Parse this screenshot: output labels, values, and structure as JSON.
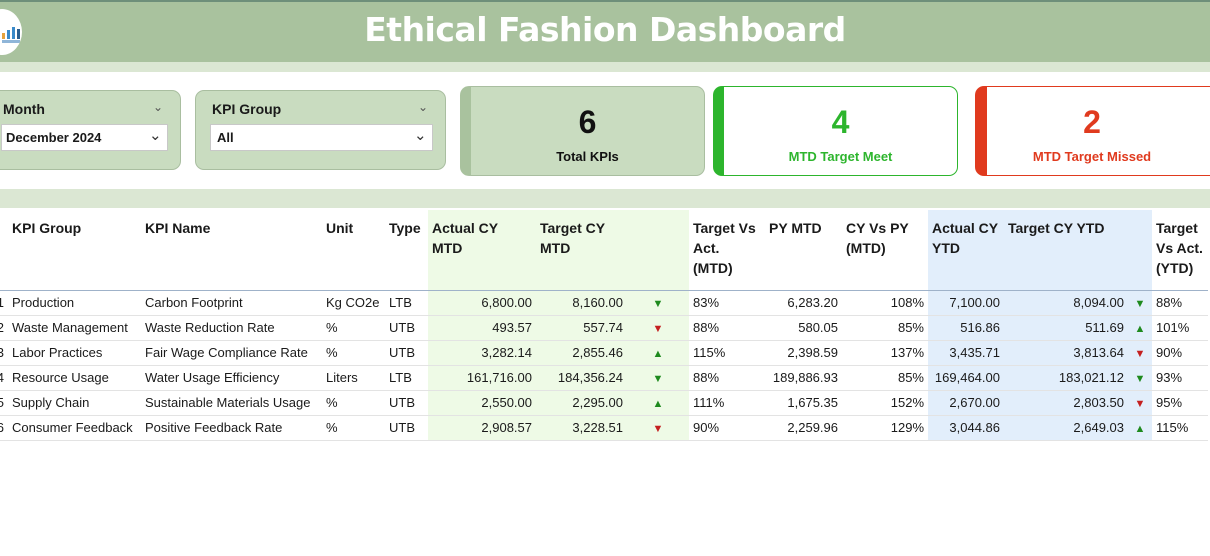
{
  "header": {
    "title": "Ethical Fashion Dashboard"
  },
  "filters": {
    "month": {
      "label": "Month",
      "value": "December 2024"
    },
    "kpi_group": {
      "label": "KPI Group",
      "value": "All"
    }
  },
  "cards": {
    "total": {
      "value": "6",
      "label": "Total KPIs"
    },
    "meet": {
      "value": "4",
      "label": "MTD Target Meet",
      "color": "#2db52d"
    },
    "missed": {
      "value": "2",
      "label": "MTD Target Missed",
      "color": "#e03a1e"
    }
  },
  "table": {
    "headers": {
      "no": "",
      "group": "KPI Group",
      "name": "KPI Name",
      "unit": "Unit",
      "type": "Type",
      "actual_mtd": "Actual CY MTD",
      "target_mtd": "Target CY MTD",
      "tva_mtd": "Target Vs Act. (MTD)",
      "py_mtd": "PY MTD",
      "cyvspy_mtd": "CY Vs PY (MTD)",
      "actual_ytd": "Actual CY YTD",
      "target_ytd": "Target CY YTD",
      "tva_ytd": "Target Vs Act. (YTD)"
    },
    "rows": [
      {
        "no": "1",
        "group": "Production",
        "name": "Carbon Footprint",
        "unit": "Kg CO2e",
        "type": "LTB",
        "actual_mtd": "6,800.00",
        "target_mtd": "8,160.00",
        "icon_mtd": "down-green",
        "tva_mtd": "83%",
        "py_mtd": "6,283.20",
        "cyvspy_mtd": "108%",
        "actual_ytd": "7,100.00",
        "target_ytd": "8,094.00",
        "icon_ytd": "down-green",
        "tva_ytd": "88%"
      },
      {
        "no": "2",
        "group": "Waste Management",
        "name": "Waste Reduction Rate",
        "unit": "%",
        "type": "UTB",
        "actual_mtd": "493.57",
        "target_mtd": "557.74",
        "icon_mtd": "down-red",
        "tva_mtd": "88%",
        "py_mtd": "580.05",
        "cyvspy_mtd": "85%",
        "actual_ytd": "516.86",
        "target_ytd": "511.69",
        "icon_ytd": "up-green",
        "tva_ytd": "101%"
      },
      {
        "no": "3",
        "group": "Labor Practices",
        "name": "Fair Wage Compliance Rate",
        "unit": "%",
        "type": "UTB",
        "actual_mtd": "3,282.14",
        "target_mtd": "2,855.46",
        "icon_mtd": "up-green",
        "tva_mtd": "115%",
        "py_mtd": "2,398.59",
        "cyvspy_mtd": "137%",
        "actual_ytd": "3,435.71",
        "target_ytd": "3,813.64",
        "icon_ytd": "down-red",
        "tva_ytd": "90%"
      },
      {
        "no": "4",
        "group": "Resource Usage",
        "name": "Water Usage Efficiency",
        "unit": "Liters",
        "type": "LTB",
        "actual_mtd": "161,716.00",
        "target_mtd": "184,356.24",
        "icon_mtd": "down-green",
        "tva_mtd": "88%",
        "py_mtd": "189,886.93",
        "cyvspy_mtd": "85%",
        "actual_ytd": "169,464.00",
        "target_ytd": "183,021.12",
        "icon_ytd": "down-green",
        "tva_ytd": "93%"
      },
      {
        "no": "5",
        "group": "Supply Chain",
        "name": "Sustainable Materials Usage",
        "unit": "%",
        "type": "UTB",
        "actual_mtd": "2,550.00",
        "target_mtd": "2,295.00",
        "icon_mtd": "up-green",
        "tva_mtd": "111%",
        "py_mtd": "1,675.35",
        "cyvspy_mtd": "152%",
        "actual_ytd": "2,670.00",
        "target_ytd": "2,803.50",
        "icon_ytd": "down-red",
        "tva_ytd": "95%"
      },
      {
        "no": "6",
        "group": "Consumer Feedback",
        "name": "Positive Feedback Rate",
        "unit": "%",
        "type": "UTB",
        "actual_mtd": "2,908.57",
        "target_mtd": "3,228.51",
        "icon_mtd": "down-red",
        "tva_mtd": "90%",
        "py_mtd": "2,259.96",
        "cyvspy_mtd": "129%",
        "actual_ytd": "3,044.86",
        "target_ytd": "2,649.03",
        "icon_ytd": "up-green",
        "tva_ytd": "115%"
      }
    ]
  }
}
